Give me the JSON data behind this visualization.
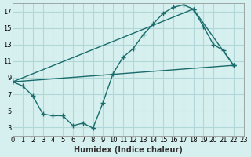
{
  "xlabel": "Humidex (Indice chaleur)",
  "ylabel": "",
  "background_color": "#d6f0ef",
  "grid_color": "#b0d8d8",
  "line_color": "#1a6b6b",
  "xlim": [
    0,
    23
  ],
  "ylim": [
    2,
    18
  ],
  "xticks": [
    0,
    1,
    2,
    3,
    4,
    5,
    6,
    7,
    8,
    9,
    10,
    11,
    12,
    13,
    14,
    15,
    16,
    17,
    18,
    19,
    20,
    21,
    22,
    23
  ],
  "yticks": [
    3,
    5,
    7,
    9,
    11,
    13,
    15,
    17
  ],
  "series": [
    {
      "x": [
        0,
        1,
        2,
        3,
        4,
        5,
        6,
        7,
        8,
        9,
        10,
        11,
        12,
        13,
        14,
        15,
        16,
        17,
        18,
        19,
        20,
        21,
        22
      ],
      "y": [
        8.5,
        8.0,
        6.8,
        4.6,
        4.4,
        4.4,
        3.2,
        3.5,
        2.9,
        6.0,
        9.5,
        11.5,
        12.5,
        14.2,
        15.5,
        16.8,
        17.5,
        17.8,
        17.3,
        15.2,
        13.0,
        12.3,
        10.5
      ]
    },
    {
      "x": [
        0,
        18,
        22
      ],
      "y": [
        8.5,
        17.3,
        10.5
      ]
    },
    {
      "x": [
        0,
        22
      ],
      "y": [
        8.5,
        10.5
      ]
    }
  ]
}
